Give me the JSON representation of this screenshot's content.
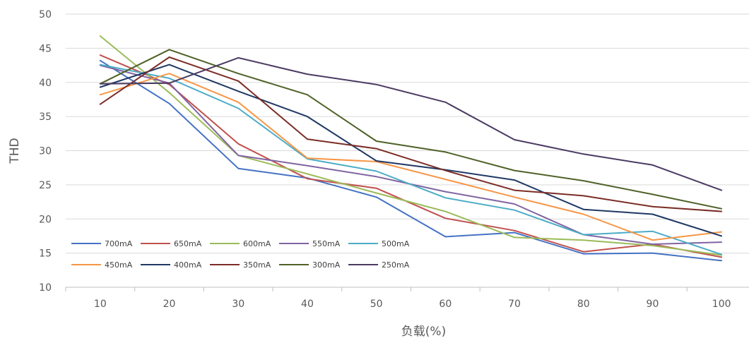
{
  "chart_data": {
    "type": "line",
    "title": "",
    "xlabel": "负载(%)",
    "ylabel": "THD",
    "categories": [
      "10",
      "20",
      "30",
      "40",
      "50",
      "60",
      "70",
      "80",
      "90",
      "100"
    ],
    "ylim": [
      10,
      50
    ],
    "yticks": [
      10,
      15,
      20,
      25,
      30,
      35,
      40,
      45,
      50
    ],
    "grid": "horizontal",
    "legend_position": "bottom-left",
    "series": [
      {
        "name": "700mA",
        "color": "#4472C4",
        "values": [
          43.2,
          36.9,
          27.4,
          26.0,
          23.2,
          17.4,
          18.0,
          14.9,
          15.0,
          13.9
        ]
      },
      {
        "name": "650mA",
        "color": "#C0504D",
        "values": [
          44.0,
          39.7,
          31.0,
          25.9,
          24.5,
          20.1,
          18.3,
          15.2,
          16.3,
          14.4
        ]
      },
      {
        "name": "600mA",
        "color": "#9BBB59",
        "values": [
          46.8,
          38.5,
          29.3,
          26.6,
          23.8,
          21.1,
          17.3,
          16.9,
          16.1,
          14.7
        ]
      },
      {
        "name": "550mA",
        "color": "#8064A2",
        "values": [
          42.5,
          39.9,
          29.3,
          27.8,
          26.2,
          24.0,
          22.2,
          17.7,
          16.3,
          16.6
        ]
      },
      {
        "name": "500mA",
        "color": "#4BACC6",
        "values": [
          42.6,
          40.6,
          36.2,
          28.8,
          27.0,
          23.1,
          21.3,
          17.7,
          18.2,
          14.8
        ]
      },
      {
        "name": "450mA",
        "color": "#F79646",
        "values": [
          38.2,
          41.3,
          37.1,
          28.9,
          28.4,
          25.8,
          23.2,
          20.7,
          16.9,
          18.1
        ]
      },
      {
        "name": "400mA",
        "color": "#1F3864",
        "values": [
          39.3,
          42.6,
          38.7,
          35.0,
          28.5,
          27.2,
          25.7,
          21.4,
          20.7,
          17.5
        ]
      },
      {
        "name": "350mA",
        "color": "#7B2D26",
        "values": [
          36.8,
          43.7,
          40.2,
          31.7,
          30.3,
          27.1,
          24.2,
          23.4,
          21.8,
          21.1
        ]
      },
      {
        "name": "300mA",
        "color": "#4F6228",
        "values": [
          39.8,
          44.8,
          41.3,
          38.2,
          31.4,
          29.8,
          27.1,
          25.6,
          23.6,
          21.5
        ]
      },
      {
        "name": "250mA",
        "color": "#4B3A62",
        "values": [
          39.8,
          39.9,
          43.6,
          41.2,
          39.7,
          37.1,
          31.6,
          29.5,
          27.9,
          24.2
        ]
      }
    ]
  }
}
